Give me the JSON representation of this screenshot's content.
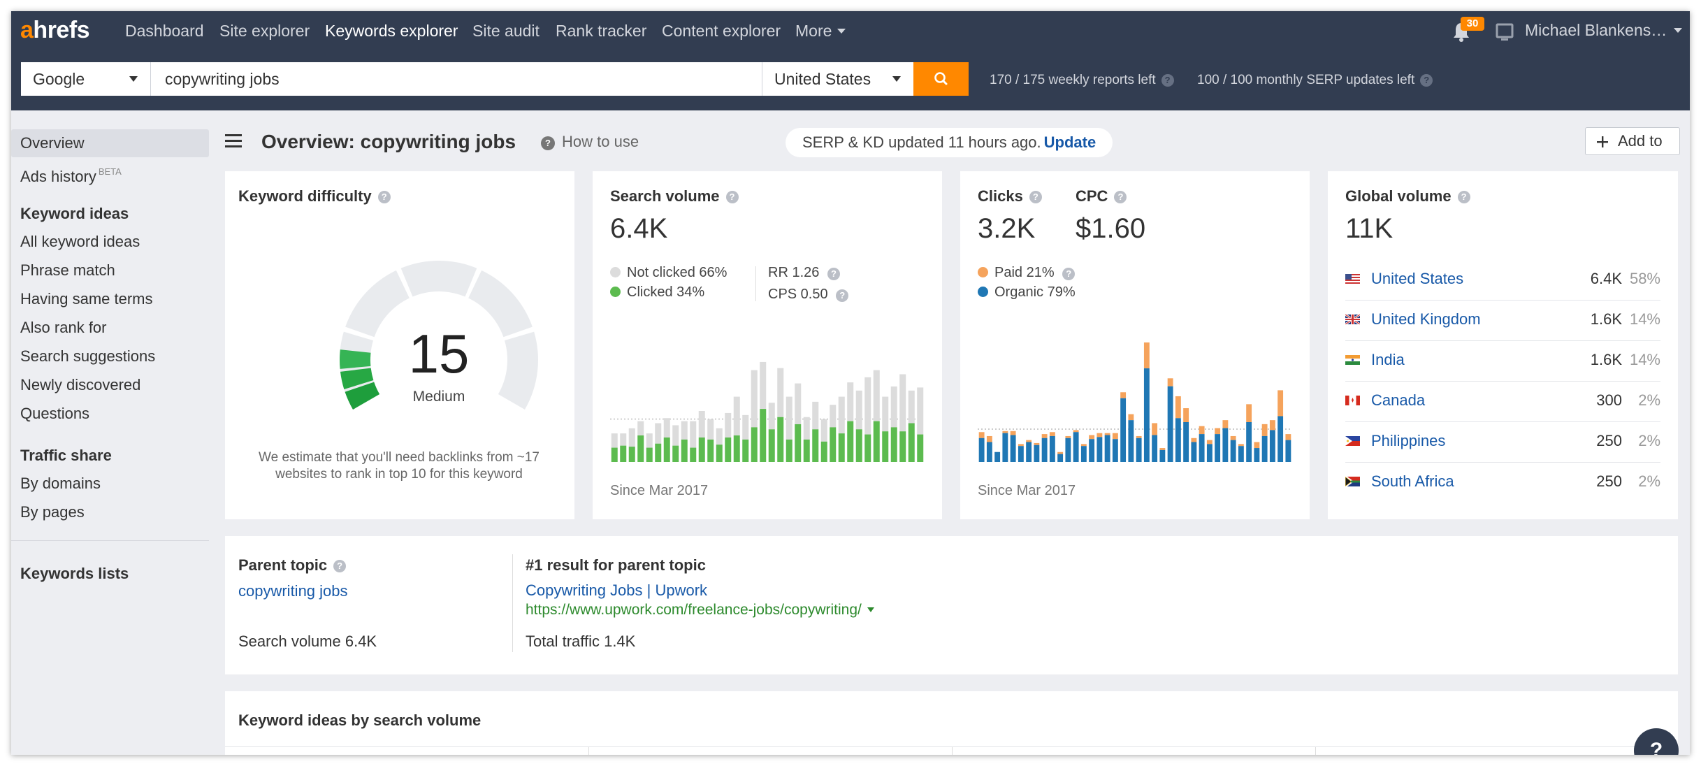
{
  "nav": {
    "logo_a": "a",
    "logo_rest": "hrefs",
    "links": [
      "Dashboard",
      "Site explorer",
      "Keywords explorer",
      "Site audit",
      "Rank tracker",
      "Content explorer",
      "More"
    ],
    "notification_count": "30",
    "user_name": "Michael Blankens…"
  },
  "search": {
    "engine": "Google",
    "query": "copywriting jobs",
    "country": "United States",
    "weekly_reports": "170 / 175 weekly reports left",
    "monthly_serp": "100 / 100 monthly SERP updates left"
  },
  "sidebar": {
    "overview": "Overview",
    "ads_history": "Ads history",
    "beta": "BETA",
    "keyword_ideas_heading": "Keyword ideas",
    "keyword_ideas": [
      "All keyword ideas",
      "Phrase match",
      "Having same terms",
      "Also rank for",
      "Search suggestions",
      "Newly discovered",
      "Questions"
    ],
    "traffic_share_heading": "Traffic share",
    "traffic_share": [
      "By domains",
      "By pages"
    ],
    "keywords_lists": "Keywords lists"
  },
  "header": {
    "title": "Overview: copywriting jobs",
    "how_to_use": "How to use",
    "serp_status": "SERP & KD updated 11 hours ago.",
    "update_link": "Update",
    "add_to": "Add to"
  },
  "kd": {
    "title": "Keyword difficulty",
    "value": "15",
    "label": "Medium",
    "score": 15,
    "note": "We estimate that you'll need backlinks from ~17 websites to rank in top 10 for this keyword",
    "colors": {
      "filled": "#27a844",
      "empty": "#e9ebee"
    }
  },
  "search_volume": {
    "title": "Search volume",
    "value": "6.4K",
    "not_clicked": "Not clicked 66%",
    "clicked": "Clicked 34%",
    "rr": "RR 1.26",
    "cps": "CPS 0.50",
    "since": "Since Mar 2017",
    "colors": {
      "not_clicked": "#dcdcdc",
      "clicked": "#5cbb4f"
    }
  },
  "clicks": {
    "title": "Clicks",
    "value": "3.2K",
    "cpc_title": "CPC",
    "cpc_value": "$1.60",
    "paid": "Paid 21%",
    "organic": "Organic 79%",
    "since": "Since Mar 2017",
    "colors": {
      "paid": "#f5a35c",
      "organic": "#1f77b4"
    }
  },
  "global_volume": {
    "title": "Global volume",
    "value": "11K",
    "countries": [
      {
        "name": "United States",
        "volume": "6.4K",
        "share": "58%",
        "flag": "us"
      },
      {
        "name": "United Kingdom",
        "volume": "1.6K",
        "share": "14%",
        "flag": "gb"
      },
      {
        "name": "India",
        "volume": "1.6K",
        "share": "14%",
        "flag": "in"
      },
      {
        "name": "Canada",
        "volume": "300",
        "share": "2%",
        "flag": "ca"
      },
      {
        "name": "Philippines",
        "volume": "250",
        "share": "2%",
        "flag": "ph"
      },
      {
        "name": "South Africa",
        "volume": "250",
        "share": "2%",
        "flag": "za"
      }
    ]
  },
  "parent_topic": {
    "title": "Parent topic",
    "link": "copywriting jobs",
    "search_volume": "Search volume 6.4K",
    "result_title": "#1 result for parent topic",
    "result_link": "Copywriting Jobs | Upwork",
    "result_url": "https://www.upwork.com/freelance-jobs/copywriting/",
    "total_traffic": "Total traffic 1.4K"
  },
  "ideas": {
    "title": "Keyword ideas by search volume"
  },
  "help_button": "?",
  "chart_data": [
    {
      "type": "bar",
      "stacked": true,
      "series": [
        {
          "name": "Clicked",
          "values": [
            14,
            16,
            15,
            26,
            14,
            18,
            24,
            16,
            22,
            14,
            24,
            22,
            17,
            24,
            26,
            22,
            34,
            52,
            32,
            44,
            22,
            37,
            22,
            32,
            20,
            34,
            28,
            40,
            32,
            27,
            40,
            30,
            34,
            30,
            38,
            27
          ]
        },
        {
          "name": "Not clicked",
          "values": [
            14,
            12,
            18,
            14,
            14,
            20,
            19,
            20,
            18,
            26,
            26,
            20,
            16,
            24,
            38,
            24,
            56,
            46,
            26,
            48,
            42,
            40,
            22,
            27,
            22,
            22,
            36,
            38,
            38,
            56,
            50,
            34,
            40,
            56,
            32,
            46
          ]
        }
      ],
      "reference_line": 42,
      "grid": false
    },
    {
      "type": "bar",
      "stacked": true,
      "series": [
        {
          "name": "Organic",
          "values": [
            24,
            20,
            10,
            29,
            27,
            16,
            20,
            17,
            24,
            26,
            8,
            24,
            30,
            16,
            23,
            25,
            27,
            23,
            64,
            42,
            24,
            94,
            27,
            12,
            76,
            44,
            40,
            20,
            28,
            18,
            28,
            34,
            22,
            16,
            40,
            14,
            26,
            32,
            46,
            22
          ]
        },
        {
          "name": "Paid",
          "values": [
            6,
            6,
            0,
            2,
            4,
            2,
            2,
            2,
            4,
            4,
            2,
            2,
            2,
            2,
            4,
            4,
            2,
            6,
            6,
            6,
            2,
            26,
            12,
            2,
            8,
            22,
            14,
            4,
            8,
            4,
            6,
            8,
            4,
            2,
            18,
            6,
            12,
            10,
            26,
            6
          ]
        }
      ],
      "reference_line": 33,
      "grid": false
    }
  ]
}
